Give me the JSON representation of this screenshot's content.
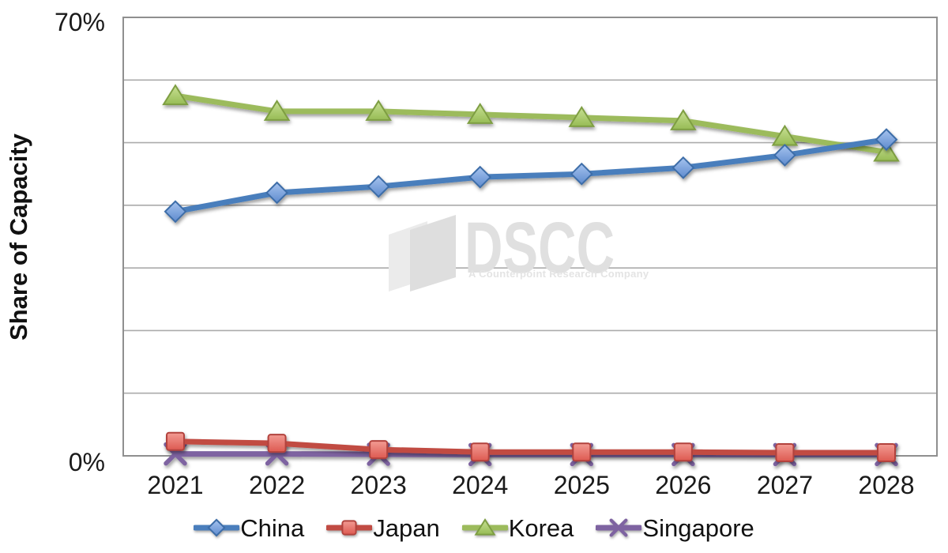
{
  "chart_data": {
    "type": "line",
    "title": "",
    "ylabel": "Share of Capacity",
    "x_categories": [
      "2021",
      "2022",
      "2023",
      "2024",
      "2025",
      "2026",
      "2027",
      "2028"
    ],
    "y_axis": {
      "min": 0,
      "max": 70,
      "gridline_step": 10,
      "max_label": "70%",
      "min_label": "0%"
    },
    "grid": true,
    "legend_position": "bottom",
    "draw_order": [
      "Korea",
      "Singapore",
      "Japan",
      "China"
    ],
    "series": [
      {
        "name": "China",
        "marker": "diamond",
        "line_color": "#4A7EBC",
        "marker_stroke": "#3D6DA8",
        "marker_fill_top": "#A6C3EE",
        "marker_fill_bottom": "#5E8BCE",
        "values": [
          39,
          42,
          43,
          44.5,
          45,
          46,
          48,
          50.5
        ]
      },
      {
        "name": "Japan",
        "marker": "square",
        "line_color": "#C14B43",
        "marker_stroke": "#B2433D",
        "marker_fill_top": "#F29B93",
        "marker_fill_bottom": "#DD5A51",
        "values": [
          2.3,
          2,
          1,
          0.6,
          0.6,
          0.6,
          0.5,
          0.5
        ]
      },
      {
        "name": "Korea",
        "marker": "triangle",
        "line_color": "#9CBB5C",
        "marker_stroke": "#7E9E43",
        "marker_fill_top": "#C8E094",
        "marker_fill_bottom": "#97BC55",
        "values": [
          57.5,
          55,
          55,
          54.5,
          54,
          53.5,
          51,
          48.5
        ]
      },
      {
        "name": "Singapore",
        "marker": "x",
        "line_color": "#7E63A1",
        "marker_stroke": "#7E63A1",
        "marker_fill_top": "#7E63A1",
        "marker_fill_bottom": "#7E63A1",
        "values": [
          0.3,
          0.3,
          0.25,
          0.2,
          0.2,
          0.2,
          0.2,
          0.2
        ]
      }
    ]
  },
  "watermark": {
    "brand": "DSCC",
    "tagline": "A Counterpoint Research Company"
  }
}
